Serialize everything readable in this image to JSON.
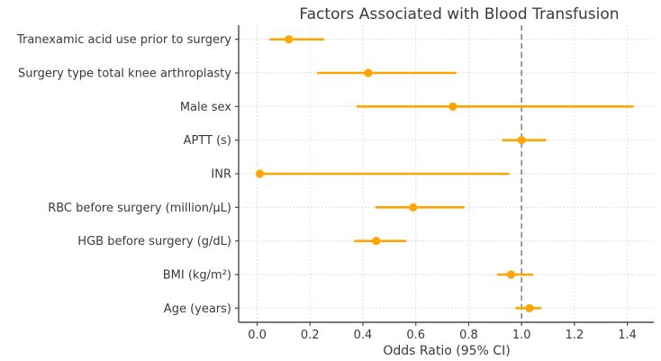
{
  "chart_data": {
    "type": "scatter",
    "subtype": "forest-plot",
    "title": "Factors Associated with Blood Transfusion",
    "xlabel": "Odds Ratio (95% CI)",
    "categories": [
      "Tranexamic acid use prior to surgery",
      "Surgery type total knee arthroplasty",
      "Male sex",
      "APTT (s)",
      "INR",
      "RBC before surgery (million/μL)",
      "HGB before surgery (g/dL)",
      "BMI (kg/m²)",
      "Age (years)"
    ],
    "points": [
      {
        "or": 0.12,
        "ci_low": 0.05,
        "ci_high": 0.25
      },
      {
        "or": 0.42,
        "ci_low": 0.23,
        "ci_high": 0.75
      },
      {
        "or": 0.74,
        "ci_low": 0.38,
        "ci_high": 1.42
      },
      {
        "or": 1.0,
        "ci_low": 0.93,
        "ci_high": 1.09
      },
      {
        "or": 0.01,
        "ci_low": 0.0,
        "ci_high": 0.95
      },
      {
        "or": 0.59,
        "ci_low": 0.45,
        "ci_high": 0.78
      },
      {
        "or": 0.45,
        "ci_low": 0.37,
        "ci_high": 0.56
      },
      {
        "or": 0.96,
        "ci_low": 0.91,
        "ci_high": 1.04
      },
      {
        "or": 1.03,
        "ci_low": 0.98,
        "ci_high": 1.07
      }
    ],
    "x_ticks": [
      0.0,
      0.2,
      0.4,
      0.6,
      0.8,
      1.0,
      1.2,
      1.4
    ],
    "xlim": [
      -0.07,
      1.5
    ],
    "reference_line": 1.0,
    "grid": true,
    "legend": null,
    "colors": {
      "marker": "#FFA500",
      "ci_line": "#FFA500",
      "reference_line": "#7f7f7f",
      "grid": "#d2d2d2",
      "spine": "#4a4a4a",
      "text": "#3a3a3a",
      "background": "#ffffff"
    }
  }
}
